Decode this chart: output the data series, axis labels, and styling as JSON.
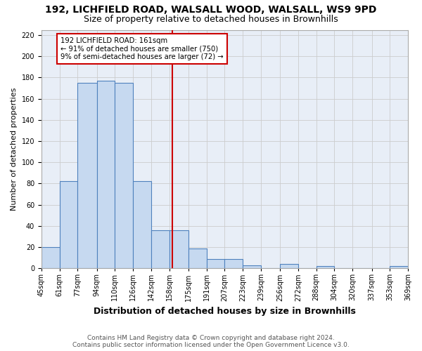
{
  "title": "192, LICHFIELD ROAD, WALSALL WOOD, WALSALL, WS9 9PD",
  "subtitle": "Size of property relative to detached houses in Brownhills",
  "xlabel": "Distribution of detached houses by size in Brownhills",
  "ylabel": "Number of detached properties",
  "bin_edges": [
    45,
    61,
    77,
    94,
    110,
    126,
    142,
    158,
    175,
    191,
    207,
    223,
    239,
    256,
    272,
    288,
    304,
    320,
    337,
    353,
    369
  ],
  "bar_heights": [
    20,
    82,
    175,
    177,
    175,
    82,
    36,
    36,
    19,
    9,
    9,
    3,
    0,
    4,
    0,
    2,
    0,
    0,
    0,
    2
  ],
  "bar_color": "#c6d9f0",
  "bar_edge_color": "#4f81bd",
  "reference_line_x": 161,
  "reference_line_color": "#cc0000",
  "annotation_line1": "192 LICHFIELD ROAD: 161sqm",
  "annotation_line2": "← 91% of detached houses are smaller (750)",
  "annotation_line3": "9% of semi-detached houses are larger (72) →",
  "annotation_box_color": "#ffffff",
  "annotation_box_edge_color": "#cc0000",
  "ylim": [
    0,
    225
  ],
  "yticks": [
    0,
    20,
    40,
    60,
    80,
    100,
    120,
    140,
    160,
    180,
    200,
    220
  ],
  "tick_labels": [
    "45sqm",
    "61sqm",
    "77sqm",
    "94sqm",
    "110sqm",
    "126sqm",
    "142sqm",
    "158sqm",
    "175sqm",
    "191sqm",
    "207sqm",
    "223sqm",
    "239sqm",
    "256sqm",
    "272sqm",
    "288sqm",
    "304sqm",
    "320sqm",
    "337sqm",
    "353sqm",
    "369sqm"
  ],
  "footer_text": "Contains HM Land Registry data © Crown copyright and database right 2024.\nContains public sector information licensed under the Open Government Licence v3.0.",
  "title_fontsize": 10,
  "subtitle_fontsize": 9,
  "xlabel_fontsize": 9,
  "ylabel_fontsize": 8,
  "tick_fontsize": 7,
  "footer_fontsize": 6.5,
  "bg_color": "#ffffff",
  "grid_color": "#cccccc",
  "plot_bg_color": "#e8eef7"
}
